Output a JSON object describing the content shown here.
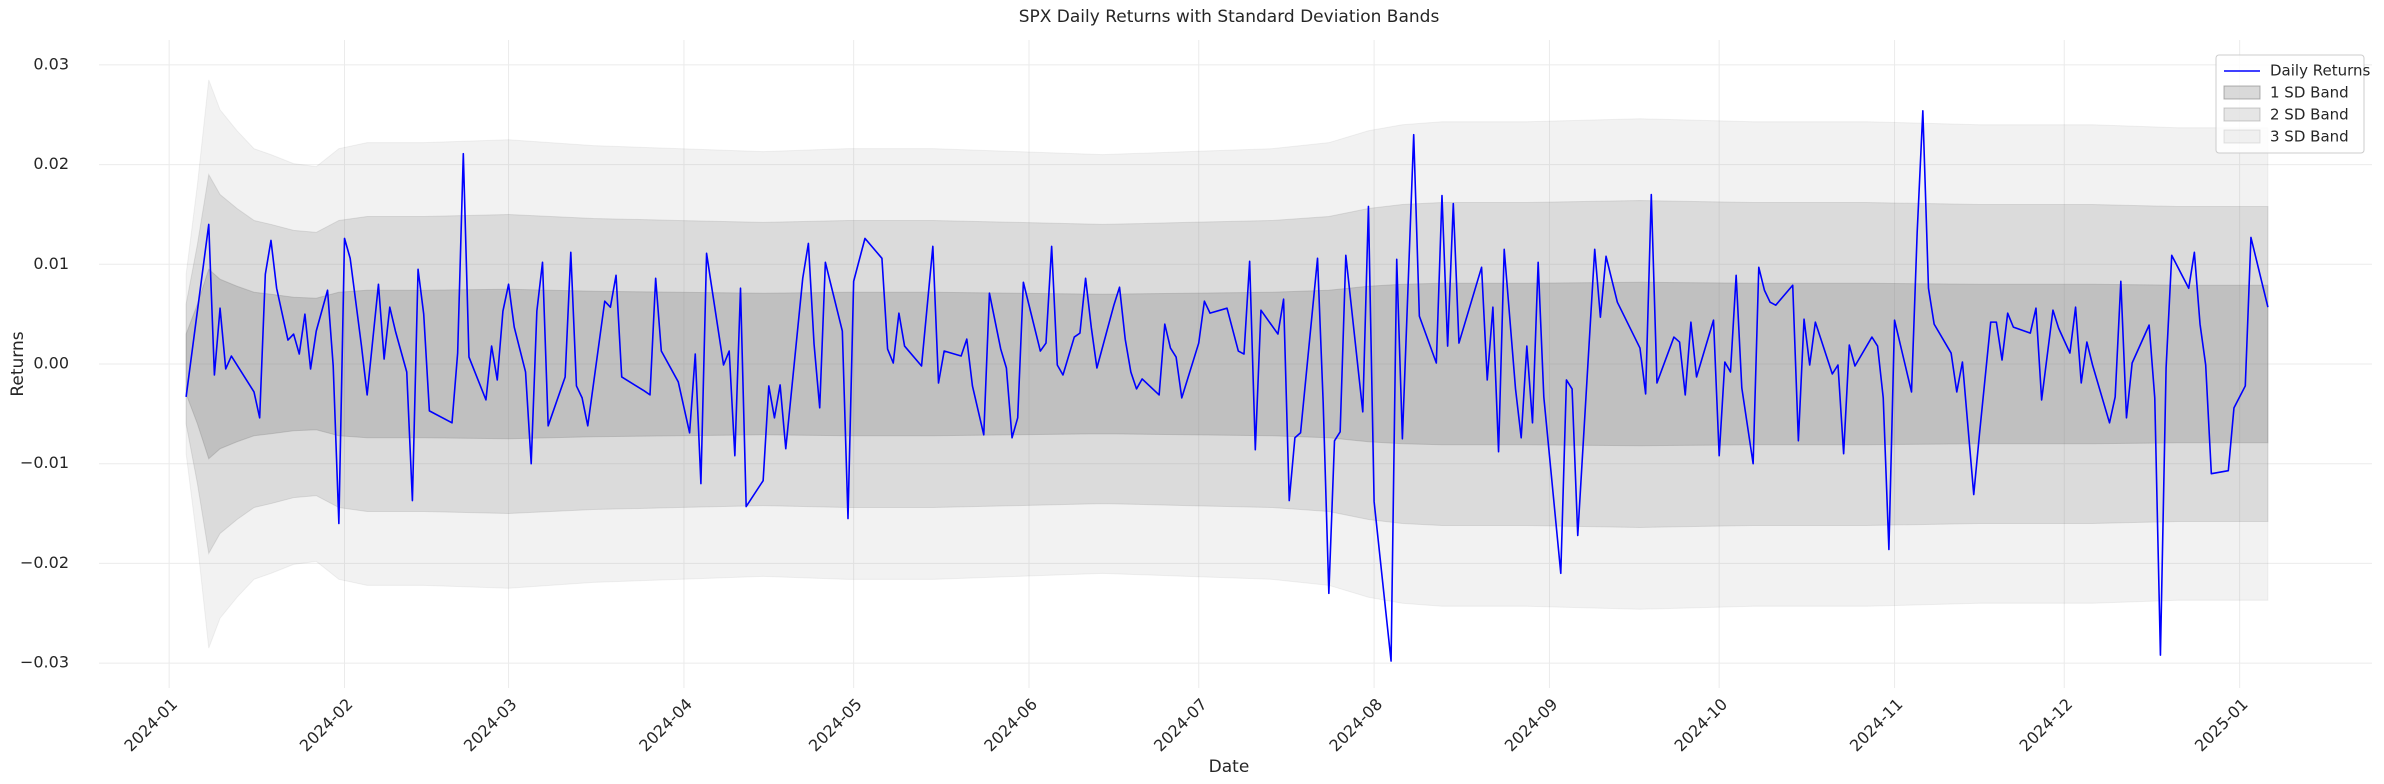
{
  "chart_data": {
    "type": "line",
    "title": "SPX Daily Returns with Standard Deviation Bands",
    "xlabel": "Date",
    "ylabel": "Returns",
    "xlim": [
      -12.4,
      389.4
    ],
    "ylim": [
      -0.0325,
      0.0325
    ],
    "xticks": [
      {
        "value": 0,
        "label": "2024-01"
      },
      {
        "value": 31,
        "label": "2024-02"
      },
      {
        "value": 60,
        "label": "2024-03"
      },
      {
        "value": 91,
        "label": "2024-04"
      },
      {
        "value": 121,
        "label": "2024-05"
      },
      {
        "value": 152,
        "label": "2024-06"
      },
      {
        "value": 182,
        "label": "2024-07"
      },
      {
        "value": 213,
        "label": "2024-08"
      },
      {
        "value": 244,
        "label": "2024-09"
      },
      {
        "value": 274,
        "label": "2024-10"
      },
      {
        "value": 305,
        "label": "2024-11"
      },
      {
        "value": 335,
        "label": "2024-12"
      },
      {
        "value": 366,
        "label": "2025-01"
      }
    ],
    "yticks": [
      {
        "value": -0.03,
        "label": "−0.03"
      },
      {
        "value": -0.02,
        "label": "−0.02"
      },
      {
        "value": -0.01,
        "label": "−0.01"
      },
      {
        "value": 0,
        "label": "0.00"
      },
      0.01,
      0.02,
      0.03
    ],
    "grid": true,
    "legend": "upper right",
    "series": [
      {
        "name": "Daily Returns",
        "color": "#0000ff",
        "x": [
          3,
          7,
          8,
          9,
          10,
          11,
          15,
          16,
          17,
          18,
          19,
          21,
          22,
          23,
          24,
          25,
          26,
          28,
          29,
          30,
          31,
          32,
          34,
          35,
          37,
          38,
          39,
          40,
          42,
          43,
          44,
          45,
          46,
          50,
          51,
          52,
          53,
          56,
          57,
          58,
          59,
          60,
          61,
          63,
          64,
          65,
          66,
          67,
          70,
          71,
          72,
          73,
          74,
          77,
          78,
          79,
          80,
          84,
          85,
          86,
          87,
          90,
          92,
          93,
          94,
          95,
          98,
          99,
          100,
          101,
          102,
          105,
          106,
          107,
          108,
          109,
          112,
          113,
          114,
          115,
          116,
          119,
          120,
          121,
          123,
          126,
          127,
          128,
          129,
          130,
          133,
          135,
          136,
          137,
          140,
          141,
          142,
          144,
          145,
          147,
          148,
          149,
          150,
          151,
          154,
          155,
          156,
          157,
          158,
          160,
          161,
          162,
          163,
          164,
          167,
          168,
          169,
          170,
          171,
          172,
          175,
          176,
          177,
          178,
          179,
          182,
          183,
          184,
          187,
          189,
          190,
          191,
          192,
          193,
          196,
          197,
          198,
          199,
          200,
          203,
          204,
          205,
          206,
          207,
          208,
          211,
          212,
          213,
          216,
          217,
          218,
          220,
          221,
          224,
          225,
          226,
          227,
          228,
          232,
          233,
          234,
          235,
          236,
          238,
          239,
          240,
          241,
          242,
          243,
          246,
          247,
          248,
          249,
          252,
          253,
          254,
          256,
          260,
          261,
          262,
          263,
          266,
          267,
          268,
          269,
          270,
          273,
          274,
          275,
          276,
          277,
          278,
          280,
          281,
          282,
          283,
          284,
          287,
          288,
          289,
          290,
          291,
          294,
          295,
          296,
          297,
          298,
          301,
          302,
          303,
          304,
          305,
          308,
          309,
          310,
          311,
          312,
          315,
          316,
          317,
          319,
          320,
          322,
          323,
          324,
          325,
          326,
          329,
          330,
          331,
          333,
          334,
          336,
          337,
          338,
          339,
          340,
          343,
          344,
          345,
          346,
          347,
          350,
          351,
          352,
          353,
          354,
          357,
          358,
          359,
          360,
          361,
          364,
          365,
          367,
          368,
          371
        ],
        "values": [
          -0.0033,
          0.014,
          -0.0011,
          0.0056,
          -0.0005,
          0.0008,
          -0.0028,
          -0.0054,
          0.009,
          0.0124,
          0.0076,
          0.0024,
          0.003,
          0.001,
          0.005,
          -0.0005,
          0.0033,
          0.0074,
          -0.0002,
          -0.016,
          0.0126,
          0.0106,
          0.0018,
          -0.0031,
          0.008,
          0.0005,
          0.0057,
          0.0033,
          -0.0008,
          -0.0137,
          0.0095,
          0.005,
          -0.0047,
          -0.0059,
          0.0011,
          0.0211,
          0.0007,
          -0.0036,
          0.0018,
          -0.0016,
          0.0053,
          0.008,
          0.0037,
          -0.0008,
          -0.01,
          0.0053,
          0.0102,
          -0.0062,
          -0.0013,
          0.0112,
          -0.0022,
          -0.0034,
          -0.0062,
          0.0063,
          0.0057,
          0.0089,
          -0.0013,
          -0.0027,
          -0.0031,
          0.0086,
          0.0013,
          -0.0018,
          -0.0069,
          0.001,
          -0.012,
          0.0111,
          -0.0001,
          0.0013,
          -0.0092,
          0.0076,
          -0.0143,
          -0.0117,
          -0.0022,
          -0.0054,
          -0.0021,
          -0.0085,
          0.0086,
          0.0121,
          0.002,
          -0.0044,
          0.0102,
          0.0033,
          -0.0155,
          0.0083,
          0.0126,
          0.0106,
          0.0015,
          0.0001,
          0.0051,
          0.0018,
          -0.0002,
          0.0118,
          -0.0019,
          0.0013,
          0.0008,
          0.0025,
          -0.0022,
          -0.0071,
          0.0071,
          0.0015,
          -0.0004,
          -0.0074,
          -0.0054,
          0.0082,
          0.0013,
          0.0021,
          0.0118,
          -0.0001,
          -0.0011,
          0.0027,
          0.0031,
          0.0086,
          0.0037,
          -0.0004,
          0.0059,
          0.0077,
          0.0025,
          -0.0008,
          -0.0025,
          -0.0015,
          -0.0031,
          0.004,
          0.0016,
          0.0007,
          -0.0034,
          0.0021,
          0.0063,
          0.0051,
          0.0056,
          0.0013,
          0.001,
          0.0103,
          -0.0086,
          0.0054,
          0.003,
          0.0065,
          -0.0137,
          -0.0074,
          -0.0069,
          0.0106,
          -0.0039,
          -0.023,
          -0.0077,
          -0.0068,
          0.0109,
          -0.0048,
          0.0158,
          -0.0138,
          -0.0298,
          0.0105,
          -0.0075,
          0.023,
          0.0048,
          0.0001,
          0.0169,
          0.0018,
          0.0161,
          0.0021,
          0.0097,
          -0.0016,
          0.0057,
          -0.0088,
          0.0115,
          -0.0025,
          -0.0074,
          0.0018,
          -0.0059,
          0.0102,
          -0.0033,
          -0.021,
          -0.0016,
          -0.0025,
          -0.0172,
          0.0115,
          0.0047,
          0.0108,
          0.0062,
          0.0016,
          -0.003,
          0.017,
          -0.0019,
          0.0027,
          0.0022,
          -0.0031,
          0.0042,
          -0.0013,
          0.0044,
          -0.0092,
          0.0002,
          -0.0008,
          0.0089,
          -0.0024,
          -0.01,
          0.0097,
          0.0074,
          0.0062,
          0.0059,
          0.0079,
          -0.0077,
          0.0045,
          -0.0001,
          0.0042,
          -0.001,
          -0.0001,
          -0.009,
          0.0019,
          -0.0002,
          0.0027,
          0.0018,
          -0.0034,
          -0.0186,
          0.0044,
          -0.0028,
          0.0132,
          0.0254,
          0.0076,
          0.004,
          0.0011,
          -0.0028,
          0.0002,
          -0.0131,
          -0.0071,
          0.0042,
          0.0042,
          0.0004,
          0.0051,
          0.0037,
          0.0031,
          0.0056,
          -0.0036,
          0.0054,
          0.0036,
          0.0011,
          0.0057,
          -0.0019,
          0.0022,
          -0.0001,
          -0.0059,
          -0.0033,
          0.0083,
          -0.0054,
          0.0001,
          0.0039,
          -0.0034,
          -0.0292,
          -0.0004,
          0.0109,
          0.0076,
          0.0112,
          0.004,
          -0.0001,
          -0.011,
          -0.0107,
          -0.0044,
          -0.0022,
          0.0127,
          0.0057
        ]
      },
      {
        "name": "1 SD Band",
        "color": "#808080",
        "alpha": 0.3,
        "x": [
          3,
          5,
          7,
          9,
          12,
          15,
          18,
          22,
          26,
          30,
          35,
          45,
          60,
          75,
          90,
          105,
          120,
          135,
          150,
          165,
          180,
          195,
          205,
          212,
          218,
          225,
          240,
          260,
          280,
          300,
          320,
          340,
          355,
          371
        ],
        "upper": [
          0.003,
          0.006,
          0.0095,
          0.0085,
          0.0078,
          0.0072,
          0.007,
          0.0067,
          0.0066,
          0.0072,
          0.0074,
          0.0074,
          0.0075,
          0.0073,
          0.0072,
          0.0071,
          0.0072,
          0.0072,
          0.0071,
          0.007,
          0.0071,
          0.0072,
          0.0074,
          0.0078,
          0.008,
          0.0081,
          0.0081,
          0.0082,
          0.0081,
          0.0081,
          0.008,
          0.008,
          0.0079,
          0.0079
        ],
        "lower": [
          -0.003,
          -0.006,
          -0.0095,
          -0.0085,
          -0.0078,
          -0.0072,
          -0.007,
          -0.0067,
          -0.0066,
          -0.0072,
          -0.0074,
          -0.0074,
          -0.0075,
          -0.0073,
          -0.0072,
          -0.0071,
          -0.0072,
          -0.0072,
          -0.0071,
          -0.007,
          -0.0071,
          -0.0072,
          -0.0074,
          -0.0078,
          -0.008,
          -0.0081,
          -0.0081,
          -0.0082,
          -0.0081,
          -0.0081,
          -0.008,
          -0.008,
          -0.0079,
          -0.0079
        ]
      },
      {
        "name": "2 SD Band",
        "color": "#808080",
        "alpha": 0.2,
        "x": [
          3,
          5,
          7,
          9,
          12,
          15,
          18,
          22,
          26,
          30,
          35,
          45,
          60,
          75,
          90,
          105,
          120,
          135,
          150,
          165,
          180,
          195,
          205,
          212,
          218,
          225,
          240,
          260,
          280,
          300,
          320,
          340,
          355,
          371
        ],
        "upper": [
          0.006,
          0.012,
          0.019,
          0.017,
          0.0156,
          0.0144,
          0.014,
          0.0134,
          0.0132,
          0.0144,
          0.0148,
          0.0148,
          0.015,
          0.0146,
          0.0144,
          0.0142,
          0.0144,
          0.0144,
          0.0142,
          0.014,
          0.0142,
          0.0144,
          0.0148,
          0.0156,
          0.016,
          0.0162,
          0.0162,
          0.0164,
          0.0162,
          0.0162,
          0.016,
          0.016,
          0.0158,
          0.0158
        ],
        "lower": [
          -0.006,
          -0.012,
          -0.019,
          -0.017,
          -0.0156,
          -0.0144,
          -0.014,
          -0.0134,
          -0.0132,
          -0.0144,
          -0.0148,
          -0.0148,
          -0.015,
          -0.0146,
          -0.0144,
          -0.0142,
          -0.0144,
          -0.0144,
          -0.0142,
          -0.014,
          -0.0142,
          -0.0144,
          -0.0148,
          -0.0156,
          -0.016,
          -0.0162,
          -0.0162,
          -0.0164,
          -0.0162,
          -0.0162,
          -0.016,
          -0.016,
          -0.0158,
          -0.0158
        ]
      },
      {
        "name": "3 SD Band",
        "color": "#808080",
        "alpha": 0.1,
        "x": [
          3,
          5,
          7,
          9,
          12,
          15,
          18,
          22,
          26,
          30,
          35,
          45,
          60,
          75,
          90,
          105,
          120,
          135,
          150,
          165,
          180,
          195,
          205,
          212,
          218,
          225,
          240,
          260,
          280,
          300,
          320,
          340,
          355,
          371
        ],
        "upper": [
          0.009,
          0.018,
          0.0285,
          0.0255,
          0.0234,
          0.0216,
          0.021,
          0.0201,
          0.0198,
          0.0216,
          0.0222,
          0.0222,
          0.0225,
          0.0219,
          0.0216,
          0.0213,
          0.0216,
          0.0216,
          0.0213,
          0.021,
          0.0213,
          0.0216,
          0.0222,
          0.0234,
          0.024,
          0.0243,
          0.0243,
          0.0246,
          0.0243,
          0.0243,
          0.024,
          0.024,
          0.0237,
          0.0237
        ],
        "lower": [
          -0.009,
          -0.018,
          -0.0285,
          -0.0255,
          -0.0234,
          -0.0216,
          -0.021,
          -0.0201,
          -0.0198,
          -0.0216,
          -0.0222,
          -0.0222,
          -0.0225,
          -0.0219,
          -0.0216,
          -0.0213,
          -0.0216,
          -0.0216,
          -0.0213,
          -0.021,
          -0.0213,
          -0.0216,
          -0.0222,
          -0.0234,
          -0.024,
          -0.0243,
          -0.0243,
          -0.0246,
          -0.0243,
          -0.0243,
          -0.024,
          -0.024,
          -0.0237,
          -0.0237
        ]
      }
    ]
  }
}
